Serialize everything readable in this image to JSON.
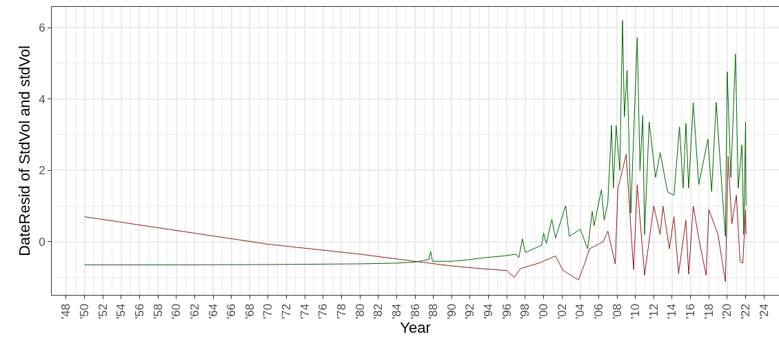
{
  "chart_data": {
    "type": "line",
    "xlabel": "Year",
    "ylabel": "DateResid of StdVol and stdVol",
    "xlim": [
      1946.43,
      2025.64
    ],
    "ylim": [
      -1.49,
      6.58
    ],
    "xticks": [
      {
        "value": 1948,
        "label": "'48"
      },
      {
        "value": 1950,
        "label": "'50"
      },
      {
        "value": 1952,
        "label": "'52"
      },
      {
        "value": 1954,
        "label": "'54"
      },
      {
        "value": 1956,
        "label": "'56"
      },
      {
        "value": 1958,
        "label": "'58"
      },
      {
        "value": 1960,
        "label": "'60"
      },
      {
        "value": 1962,
        "label": "'62"
      },
      {
        "value": 1964,
        "label": "'64"
      },
      {
        "value": 1966,
        "label": "'66"
      },
      {
        "value": 1968,
        "label": "'68"
      },
      {
        "value": 1970,
        "label": "'70"
      },
      {
        "value": 1972,
        "label": "'72"
      },
      {
        "value": 1974,
        "label": "'74"
      },
      {
        "value": 1976,
        "label": "'76"
      },
      {
        "value": 1978,
        "label": "'78"
      },
      {
        "value": 1980,
        "label": "'80"
      },
      {
        "value": 1982,
        "label": "'82"
      },
      {
        "value": 1984,
        "label": "'84"
      },
      {
        "value": 1986,
        "label": "'86"
      },
      {
        "value": 1988,
        "label": "'88"
      },
      {
        "value": 1990,
        "label": "'90"
      },
      {
        "value": 1992,
        "label": "'92"
      },
      {
        "value": 1994,
        "label": "'94"
      },
      {
        "value": 1996,
        "label": "'96"
      },
      {
        "value": 1998,
        "label": "'98"
      },
      {
        "value": 2000,
        "label": "'00"
      },
      {
        "value": 2002,
        "label": "'02"
      },
      {
        "value": 2004,
        "label": "'04"
      },
      {
        "value": 2006,
        "label": "'06"
      },
      {
        "value": 2008,
        "label": "'08"
      },
      {
        "value": 2010,
        "label": "'10"
      },
      {
        "value": 2012,
        "label": "'12"
      },
      {
        "value": 2014,
        "label": "'14"
      },
      {
        "value": 2016,
        "label": "'16"
      },
      {
        "value": 2018,
        "label": "'18"
      },
      {
        "value": 2020,
        "label": "'20"
      },
      {
        "value": 2022,
        "label": "'22"
      },
      {
        "value": 2024,
        "label": "'24"
      }
    ],
    "yticks": [
      0,
      2,
      4,
      6
    ],
    "grid": true,
    "marker": "none",
    "line_style": "solid",
    "series": [
      {
        "color": "#006400",
        "x": [
          1950,
          1960,
          1970,
          1980,
          1984,
          1986,
          1987.5,
          1987.7,
          1987.9,
          1990,
          1992,
          1993.1,
          1995.6,
          1997.0,
          1997.3,
          1997.7,
          1998.0,
          1999.8,
          2000.0,
          2000.3,
          2000.9,
          2001.3,
          2002.4,
          2002.8,
          2004.0,
          2004.8,
          2005.3,
          2005.5,
          2006.3,
          2006.6,
          2007.0,
          2007.4,
          2007.6,
          2007.9,
          2008.3,
          2008.6,
          2008.8,
          2009.1,
          2009.5,
          2010.2,
          2010.5,
          2010.8,
          2011.0,
          2011.5,
          2012.2,
          2012.7,
          2013.5,
          2014.2,
          2014.8,
          2015.2,
          2015.5,
          2015.8,
          2016.3,
          2016.9,
          2017.9,
          2018.3,
          2018.8,
          2019.4,
          2019.8,
          2020.0,
          2020.4,
          2020.9,
          2021.2,
          2021.6,
          2021.8,
          2022.0,
          2022.05
        ],
        "values": [
          -0.65,
          -0.65,
          -0.64,
          -0.62,
          -0.6,
          -0.57,
          -0.5,
          -0.27,
          -0.55,
          -0.55,
          -0.5,
          -0.46,
          -0.4,
          -0.35,
          -0.45,
          0.08,
          -0.3,
          -0.1,
          0.24,
          -0.05,
          0.63,
          0.1,
          1.01,
          0.15,
          0.35,
          -0.2,
          0.85,
          0.45,
          1.46,
          0.6,
          1.1,
          3.26,
          1.5,
          3.26,
          2.0,
          6.2,
          3.5,
          4.8,
          0.8,
          5.72,
          2.0,
          3.54,
          0.2,
          3.35,
          1.8,
          2.5,
          1.4,
          1.3,
          3.22,
          1.5,
          3.32,
          1.5,
          3.9,
          1.6,
          2.87,
          1.4,
          3.9,
          1.6,
          0.15,
          4.76,
          1.8,
          5.26,
          1.5,
          2.71,
          0.2,
          3.35,
          1.0
        ]
      },
      {
        "color": "#8b1a1a",
        "x": [
          1950,
          1970,
          1980,
          1986,
          1990,
          1993,
          1996,
          1996.8,
          1997.5,
          1999.5,
          2001.3,
          2002.1,
          2003.8,
          2004.5,
          2005.0,
          2006.5,
          2007.0,
          2007.8,
          2008.1,
          2009.0,
          2009.4,
          2009.8,
          2010.2,
          2011.0,
          2012.0,
          2012.7,
          2013.0,
          2013.7,
          2014.2,
          2014.7,
          2015.5,
          2015.8,
          2016.3,
          2016.9,
          2017.7,
          2018.0,
          2019.0,
          2019.8,
          2020.1,
          2020.5,
          2021.0,
          2021.4,
          2021.7,
          2022.0,
          2022.05
        ],
        "values": [
          0.7,
          -0.07,
          -0.35,
          -0.55,
          -0.68,
          -0.75,
          -0.81,
          -1.0,
          -0.75,
          -0.6,
          -0.4,
          -0.8,
          -1.07,
          -0.6,
          -0.2,
          0.0,
          0.3,
          -0.62,
          1.49,
          2.45,
          0.8,
          -0.78,
          1.6,
          -0.94,
          1.0,
          0.2,
          1.0,
          -0.2,
          0.7,
          -0.9,
          0.6,
          -0.91,
          1.0,
          0.1,
          -0.94,
          0.9,
          0.2,
          -1.12,
          2.39,
          0.5,
          1.3,
          -0.55,
          -0.6,
          0.9,
          0.2
        ]
      }
    ]
  }
}
